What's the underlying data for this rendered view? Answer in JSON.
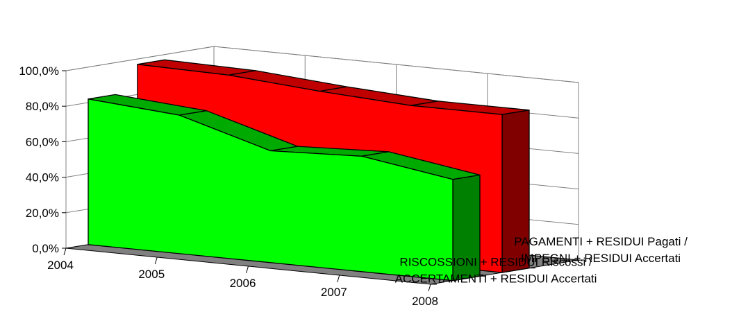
{
  "chart_data": {
    "type": "area",
    "title": "",
    "xlabel": "",
    "ylabel": "",
    "categories": [
      "2004",
      "2005",
      "2006",
      "2007",
      "2008"
    ],
    "ylim": [
      0,
      100
    ],
    "y_ticks": [
      "0,0%",
      "20,0%",
      "40,0%",
      "60,0%",
      "80,0%",
      "100,0%"
    ],
    "grid": true,
    "legend": "right",
    "series": [
      {
        "name": "PAGAMENTI + RESIDUI Pagati / IMPEGNI + RESIDUI Accertati",
        "name_lines": [
          "PAGAMENTI + RESIDUI Pagati /",
          "IMPEGNI + RESIDUI Accertati"
        ],
        "values": [
          97,
          96,
          92,
          89,
          89
        ],
        "colors": {
          "front": "#ff0000",
          "top": "#c00000",
          "side": "#800000"
        }
      },
      {
        "name": "RISCOSSIONI + RESIDUI Riscossi / ACCERTAMENTI + RESIDUI Accertati",
        "name_lines": [
          "RISCOSSIONI + RESIDUI Riscossi /",
          "ACCERTAMENTI + RESIDUI Accertati"
        ],
        "values": [
          82,
          78,
          63,
          65,
          57
        ],
        "colors": {
          "front": "#00ff00",
          "top": "#00aa00",
          "side": "#008000"
        }
      }
    ],
    "colors": {
      "floor": "#808080",
      "wall": "#ffffff",
      "grid": "#808080"
    }
  }
}
